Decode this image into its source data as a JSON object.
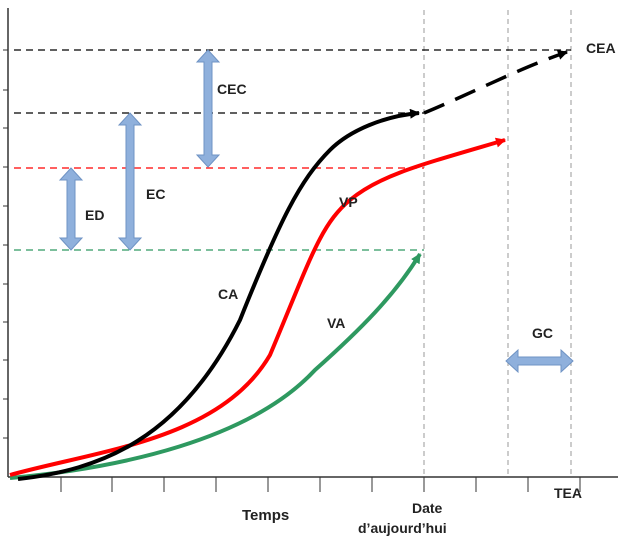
{
  "labels": {
    "cea": "CEA",
    "cec": "CEC",
    "ec": "EC",
    "ed": "ED",
    "vp": "VP",
    "ca": "CA",
    "va": "VA",
    "gc": "GC",
    "x_axis": "Temps",
    "date_line1": "Date",
    "date_line2": "d’aujourd’hui",
    "tea": "TEA"
  },
  "colors": {
    "ca": "#000000",
    "vp": "#ff0000",
    "va": "#2e9960",
    "brace": "#8fb0dc",
    "axis": "#333333",
    "guide": "#9a9a9a"
  }
}
